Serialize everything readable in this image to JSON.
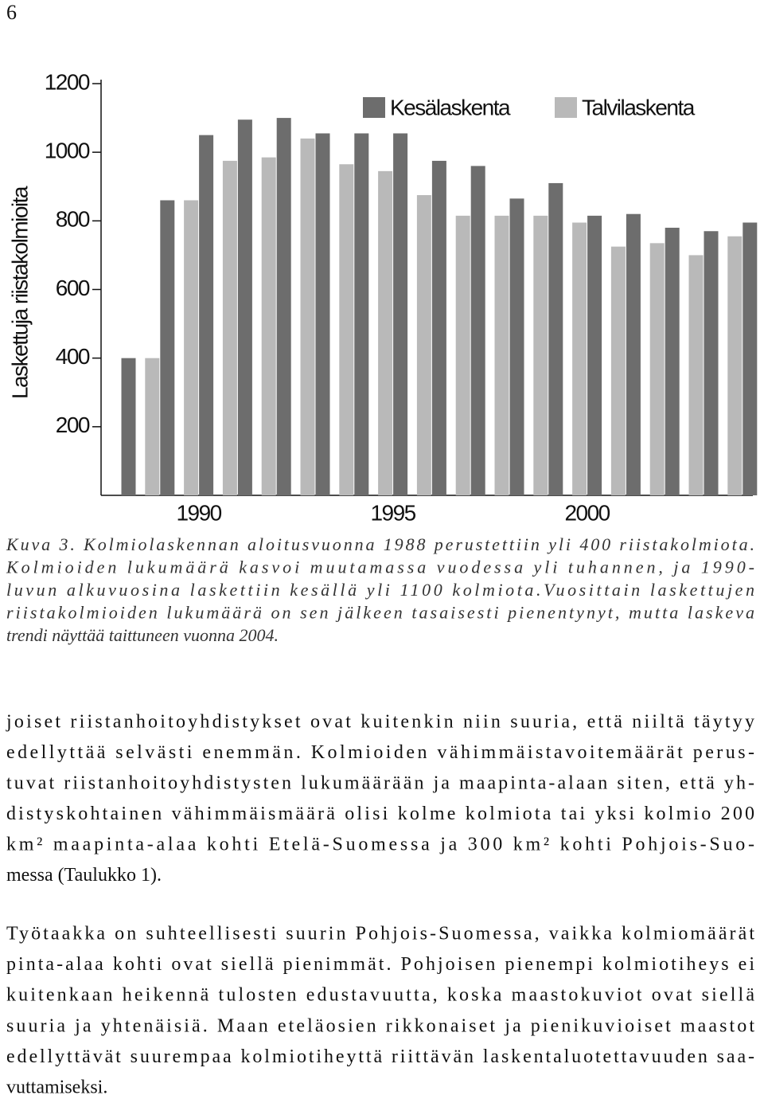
{
  "page_number": "6",
  "chart_data": {
    "type": "bar",
    "ylabel": "Laskettuja riistakolmioita",
    "categories": [
      null,
      null,
      1990,
      null,
      null,
      null,
      null,
      1995,
      null,
      null,
      null,
      null,
      2000,
      null,
      null,
      null,
      null
    ],
    "series": [
      {
        "name": "Kesälaskenta",
        "color": "#6d6d6d",
        "values": [
          400,
          860,
          1050,
          1095,
          1100,
          1055,
          1055,
          1055,
          975,
          960,
          865,
          910,
          815,
          820,
          780,
          770,
          795
        ]
      },
      {
        "name": "Talvilaskenta",
        "color": "#b9b9b9",
        "values": [
          null,
          400,
          860,
          975,
          985,
          1040,
          965,
          945,
          875,
          815,
          815,
          815,
          795,
          725,
          735,
          700,
          755
        ]
      }
    ],
    "ylim": [
      0,
      1200
    ],
    "yticks": [
      200,
      400,
      600,
      800,
      1000,
      1200
    ]
  },
  "caption": {
    "lines": [
      "Kuva 3. Kolmiolaskennan aloitusvuonna 1988 perustettiin yli 400 riistakolmiota.",
      "Kolmioiden lukumäärä kasvoi muutamassa vuodessa yli tuhannen, ja 1990-",
      "luvun alkuvuosina laskettiin kesällä yli 1100 kolmiota.Vuosittain laskettujen",
      "riistakolmioiden lukumäärä on sen jälkeen tasaisesti pienentynyt, mutta laskeva",
      "trendi näyttää taittuneen vuonna 2004."
    ]
  },
  "paragraphs": [
    {
      "lines": [
        "joiset riistanhoitoyhdistykset ovat kuitenkin niin suuria, että niiltä täytyy",
        "edellyttää selvästi enemmän. Kolmioiden vähimmäistavoitemäärät perus-",
        "tuvat riistanhoitoyhdistysten lukumäärään ja maapinta-alaan siten, että yh-",
        "distyskohtainen vähimmäismäärä olisi kolme kolmiota tai yksi kolmio 200",
        "km² maapinta-alaa kohti Etelä-Suomessa ja 300 km² kohti Pohjois-Suo-",
        "messa (Taulukko 1)."
      ]
    },
    {
      "lines": [
        "Työtaakka on suhteellisesti suurin Pohjois-Suomessa, vaikka kolmiomäärät",
        "pinta-alaa kohti ovat siellä pienimmät. Pohjoisen pienempi kolmiotiheys ei",
        "kuitenkaan heikennä tulosten edustavuutta, koska maastokuviot ovat siellä",
        "suuria ja yhtenäisiä. Maan eteläosien rikkonaiset ja pienikuvioiset maastot",
        "edellyttävät suurempaa kolmiotiheyttä riittävän laskentaluotettavuuden saa-",
        "vuttamiseksi."
      ]
    }
  ]
}
